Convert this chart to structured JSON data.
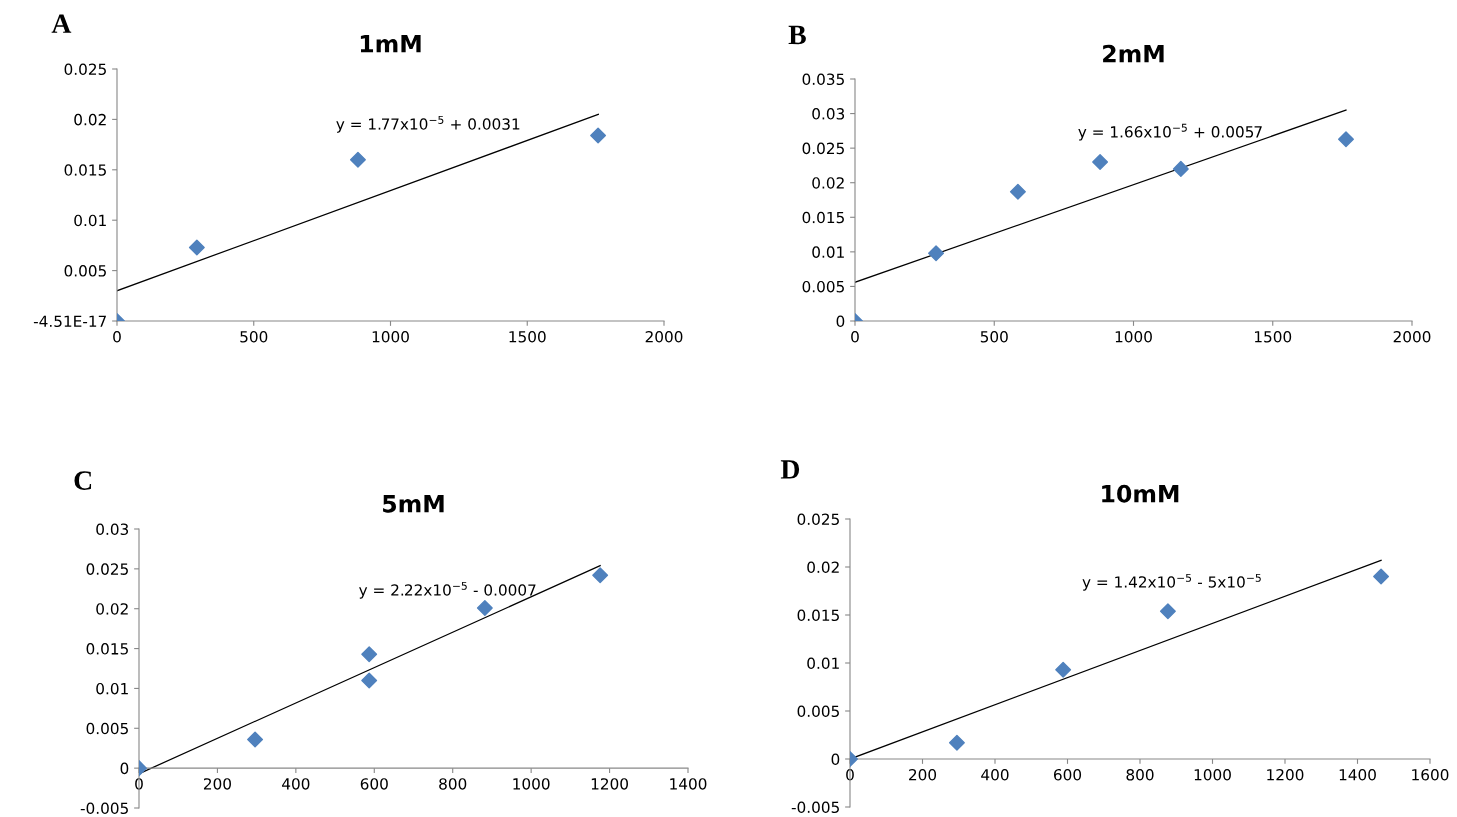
{
  "chart_data": [
    {
      "type": "scatter",
      "title": "1mM",
      "annotations": [
        "A",
        "y = 1.77x10$^{−5}$ + 0.0031"
      ],
      "grid": false,
      "legend": false,
      "xlim": [
        0,
        2000
      ],
      "xticks": [
        0,
        500,
        1000,
        1500,
        2000
      ],
      "ylim": [
        -4.51e-17,
        0.025
      ],
      "yticks": [
        {
          "value": -4.51e-17,
          "label": "-4.51E-17"
        },
        0.005,
        0.01,
        0.015,
        0.02,
        0.025
      ],
      "series": [
        {
          "color": "#4f81bd",
          "marker": "diamond",
          "x": [
            0,
            292,
            881,
            1759
          ],
          "values": [
            0,
            0.0073,
            0.016,
            0.0184
          ]
        },
        {
          "type": "line",
          "color": "#000000",
          "x": [
            0,
            1760
          ],
          "values": [
            0.003,
            0.0205
          ]
        }
      ]
    },
    {
      "type": "scatter",
      "title": "2mM",
      "annotations": [
        "B",
        "y = 1.66x10$^{−5}$ + 0.0057"
      ],
      "grid": false,
      "legend": false,
      "xlim": [
        0,
        2000
      ],
      "xticks": [
        0,
        500,
        1000,
        1500,
        2000
      ],
      "ylim": [
        0,
        0.035
      ],
      "yticks": [
        0,
        0.005,
        0.01,
        0.015,
        0.02,
        0.025,
        0.03,
        0.035
      ],
      "series": [
        {
          "color": "#4f81bd",
          "marker": "diamond",
          "x": [
            0,
            291,
            585,
            880,
            1170,
            1763
          ],
          "values": [
            0,
            0.0098,
            0.0187,
            0.023,
            0.022,
            0.0263
          ]
        },
        {
          "type": "line",
          "color": "#000000",
          "x": [
            0,
            1763
          ],
          "values": [
            0.0056,
            0.0305
          ]
        }
      ]
    },
    {
      "type": "scatter",
      "title": "5mM",
      "annotations": [
        "C",
        "y = 2.22x10$^{−5}$ - 0.0007"
      ],
      "grid": false,
      "legend": false,
      "xlim": [
        0,
        1400
      ],
      "xticks": [
        0,
        200,
        400,
        600,
        800,
        1000,
        1200,
        1400
      ],
      "ylim": [
        -0.005,
        0.03
      ],
      "yticks": [
        -0.005,
        0,
        0.005,
        0.01,
        0.015,
        0.02,
        0.025,
        0.03
      ],
      "series": [
        {
          "color": "#4f81bd",
          "marker": "diamond",
          "x": [
            0,
            296,
            587,
            587,
            882,
            1176
          ],
          "values": [
            0,
            0.0036,
            0.0143,
            0.011,
            0.0201,
            0.0242
          ]
        },
        {
          "type": "line",
          "color": "#000000",
          "x": [
            0,
            1176
          ],
          "values": [
            -0.0007,
            0.0254
          ]
        }
      ]
    },
    {
      "type": "scatter",
      "title": "10mM",
      "annotations": [
        "D",
        "y = 1.42x10$^{−5}$ - 5x10$^{−5}$"
      ],
      "grid": false,
      "legend": false,
      "xlim": [
        0,
        1600
      ],
      "xticks": [
        0,
        200,
        400,
        600,
        800,
        1000,
        1200,
        1400,
        1600
      ],
      "ylim": [
        -0.005,
        0.025
      ],
      "yticks": [
        -0.005,
        0,
        0.005,
        0.01,
        0.015,
        0.02,
        0.025
      ],
      "series": [
        {
          "color": "#4f81bd",
          "marker": "diamond",
          "x": [
            0,
            295,
            588,
            877,
            1465
          ],
          "values": [
            0,
            0.0017,
            0.0093,
            0.0154,
            0.019
          ]
        },
        {
          "type": "line",
          "color": "#000000",
          "x": [
            0,
            1465
          ],
          "values": [
            0,
            0.0207
          ]
        }
      ]
    }
  ]
}
